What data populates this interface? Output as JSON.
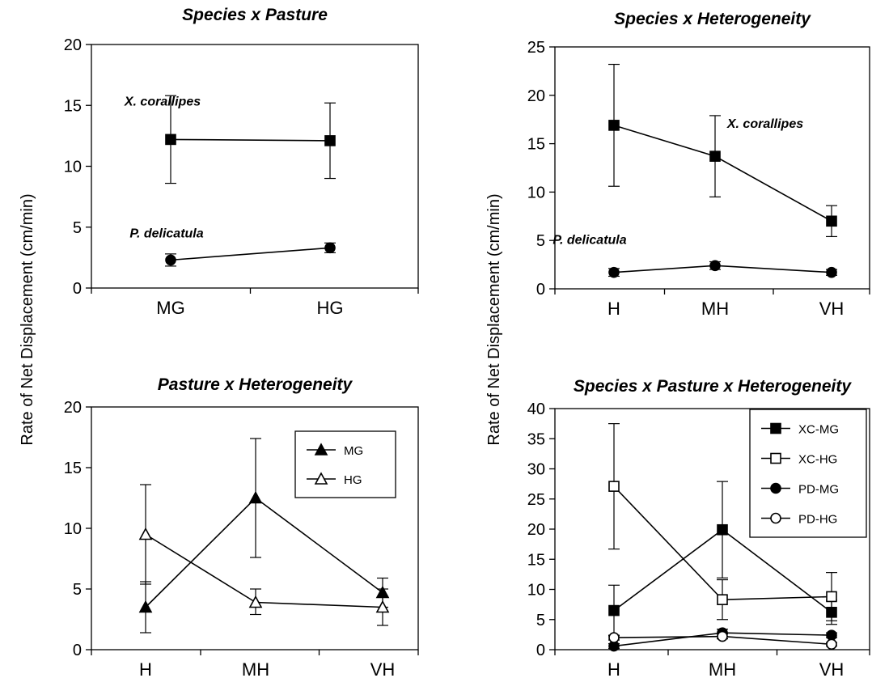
{
  "ylabel": "Rate of Net Displacement (cm/min)",
  "chart_data": [
    {
      "type": "line",
      "title": "Species x Pasture",
      "categories": [
        "MG",
        "HG"
      ],
      "ylim": [
        0,
        20
      ],
      "yticks": [
        0,
        5,
        10,
        15,
        20
      ],
      "grid": false,
      "series": [
        {
          "name": "X. corallipes",
          "marker": "square-filled",
          "values": [
            12.2,
            12.1
          ],
          "err": [
            [
              8.6,
              15.8
            ],
            [
              9.0,
              15.2
            ]
          ]
        },
        {
          "name": "P. delicatula",
          "marker": "circle-filled",
          "values": [
            2.3,
            3.3
          ],
          "err": [
            [
              1.8,
              2.8
            ],
            [
              2.9,
              3.7
            ]
          ]
        }
      ]
    },
    {
      "type": "line",
      "title": "Species x Heterogeneity",
      "categories": [
        "H",
        "MH",
        "VH"
      ],
      "ylim": [
        0,
        25
      ],
      "yticks": [
        0,
        5,
        10,
        15,
        20,
        25
      ],
      "grid": false,
      "series": [
        {
          "name": "X. corallipes",
          "marker": "square-filled",
          "values": [
            16.9,
            13.7,
            7.0
          ],
          "err": [
            [
              10.6,
              23.2
            ],
            [
              9.5,
              17.9
            ],
            [
              5.4,
              8.6
            ]
          ]
        },
        {
          "name": "P. delicatula",
          "marker": "circle-filled",
          "values": [
            1.7,
            2.4,
            1.7
          ],
          "err": [
            [
              1.3,
              2.1
            ],
            [
              2.0,
              2.8
            ],
            [
              1.4,
              2.0
            ]
          ]
        }
      ]
    },
    {
      "type": "line",
      "title": "Pasture x Heterogeneity",
      "categories": [
        "H",
        "MH",
        "VH"
      ],
      "ylim": [
        0,
        20
      ],
      "yticks": [
        0,
        5,
        10,
        15,
        20
      ],
      "grid": false,
      "legend_position": "top-right",
      "series": [
        {
          "name": "MG",
          "marker": "triangle-filled",
          "values": [
            3.5,
            12.5,
            4.7
          ],
          "err": [
            [
              1.4,
              5.6
            ],
            [
              7.6,
              17.4
            ],
            [
              3.5,
              5.9
            ]
          ]
        },
        {
          "name": "HG",
          "marker": "triangle-open",
          "values": [
            9.5,
            3.9,
            3.5
          ],
          "err": [
            [
              5.4,
              13.6
            ],
            [
              2.9,
              5.0
            ],
            [
              2.0,
              5.0
            ]
          ]
        }
      ]
    },
    {
      "type": "line",
      "title": "Species x Pasture x Heterogeneity",
      "categories": [
        "H",
        "MH",
        "VH"
      ],
      "ylim": [
        0,
        40
      ],
      "yticks": [
        0,
        5,
        10,
        15,
        20,
        25,
        30,
        35,
        40
      ],
      "grid": false,
      "legend_position": "top-right",
      "series": [
        {
          "name": "XC-MG",
          "marker": "square-filled",
          "values": [
            6.5,
            19.9,
            6.2
          ],
          "err": [
            [
              2.3,
              10.7
            ],
            [
              11.9,
              27.9
            ],
            [
              4.2,
              8.2
            ]
          ]
        },
        {
          "name": "XC-HG",
          "marker": "square-open",
          "values": [
            27.1,
            8.3,
            8.8
          ],
          "err": [
            [
              16.7,
              37.5
            ],
            [
              5.0,
              11.6
            ],
            [
              4.8,
              12.8
            ]
          ]
        },
        {
          "name": "PD-MG",
          "marker": "circle-filled",
          "values": [
            0.6,
            2.8,
            2.4
          ],
          "err": [
            [
              0.2,
              1.0
            ],
            [
              2.2,
              3.4
            ],
            [
              2.0,
              2.8
            ]
          ]
        },
        {
          "name": "PD-HG",
          "marker": "circle-open",
          "values": [
            2.0,
            2.2,
            0.9
          ],
          "err": [
            [
              1.6,
              2.4
            ],
            [
              1.8,
              2.6
            ],
            [
              0.6,
              1.2
            ]
          ]
        }
      ]
    }
  ]
}
